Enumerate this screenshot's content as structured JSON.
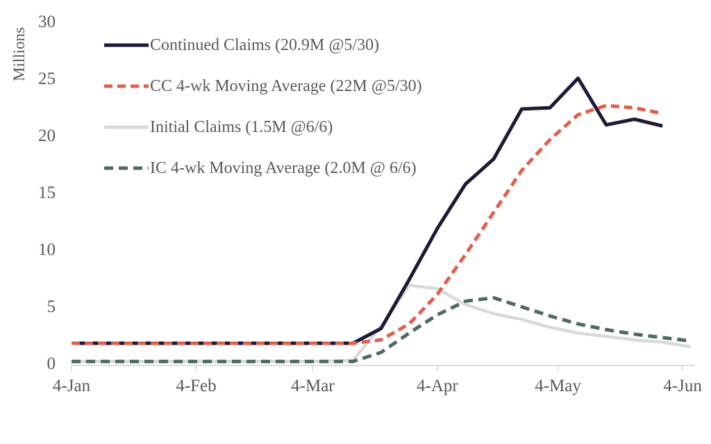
{
  "chart_data": {
    "type": "line",
    "title": "",
    "ylabel": "Millions",
    "ylim": [
      0,
      30
    ],
    "grid": false,
    "legend_position": "top-left-inside",
    "text_color": "#595959",
    "axis_color": "#d2d2d2",
    "y_ticks": [
      0,
      5,
      10,
      15,
      20,
      25,
      30
    ],
    "x_ticks": [
      {
        "label": "4-Jan",
        "day": 0
      },
      {
        "label": "4-Feb",
        "day": 31
      },
      {
        "label": "4-Mar",
        "day": 60
      },
      {
        "label": "4-Apr",
        "day": 91
      },
      {
        "label": "4-May",
        "day": 121
      },
      {
        "label": "4-Jun",
        "day": 152
      }
    ],
    "categories": [
      "4-Jan",
      "11-Jan",
      "18-Jan",
      "25-Jan",
      "1-Feb",
      "8-Feb",
      "15-Feb",
      "22-Feb",
      "29-Feb",
      "7-Mar",
      "14-Mar",
      "21-Mar",
      "28-Mar",
      "4-Apr",
      "11-Apr",
      "18-Apr",
      "25-Apr",
      "2-May",
      "9-May",
      "16-May",
      "23-May",
      "30-May",
      "6-Jun"
    ],
    "series": [
      {
        "name": "Continued Claims",
        "slug": "continued-claims",
        "legend_label": "Continued Claims (20.9M @5/30)",
        "color": "#1b1b35",
        "style": "solid",
        "width": 5,
        "dash": "",
        "values": [
          1.8,
          1.8,
          1.8,
          1.8,
          1.8,
          1.8,
          1.8,
          1.8,
          1.8,
          1.8,
          1.8,
          3.1,
          7.4,
          11.9,
          15.8,
          18.0,
          22.4,
          22.5,
          25.1,
          21.0,
          21.5,
          20.9
        ]
      },
      {
        "name": "CC 4-wk Moving Average",
        "slug": "cc-4wk-moving-average",
        "legend_label": "CC 4-wk Moving Average (22M @5/30)",
        "color": "#e0604d",
        "style": "dashed",
        "width": 5,
        "dash": "12 7",
        "values": [
          1.8,
          1.8,
          1.8,
          1.8,
          1.8,
          1.8,
          1.8,
          1.8,
          1.8,
          1.8,
          1.8,
          2.1,
          3.5,
          6.1,
          9.6,
          13.3,
          17.0,
          19.7,
          21.9,
          22.7,
          22.5,
          22.0
        ]
      },
      {
        "name": "Initial Claims",
        "slug": "initial-claims",
        "legend_label": "Initial Claims (1.5M @6/6)",
        "color": "#d9d9d9",
        "style": "solid",
        "width": 4.5,
        "dash": "",
        "values": [
          0.2,
          0.2,
          0.2,
          0.2,
          0.2,
          0.2,
          0.2,
          0.2,
          0.2,
          0.2,
          0.3,
          3.3,
          6.9,
          6.6,
          5.2,
          4.4,
          3.9,
          3.2,
          2.7,
          2.4,
          2.1,
          1.9,
          1.5
        ]
      },
      {
        "name": "IC 4-wk Moving Average",
        "slug": "ic-4wk-moving-average",
        "legend_label": "IC 4-wk Moving Average (2.0M @ 6/6)",
        "color": "#4e6a5e",
        "style": "dashed",
        "width": 5,
        "dash": "13 8",
        "values": [
          0.2,
          0.2,
          0.2,
          0.2,
          0.2,
          0.2,
          0.2,
          0.2,
          0.2,
          0.2,
          0.2,
          1.0,
          2.7,
          4.3,
          5.5,
          5.8,
          5.0,
          4.2,
          3.5,
          3.0,
          2.6,
          2.3,
          2.0
        ]
      }
    ]
  }
}
